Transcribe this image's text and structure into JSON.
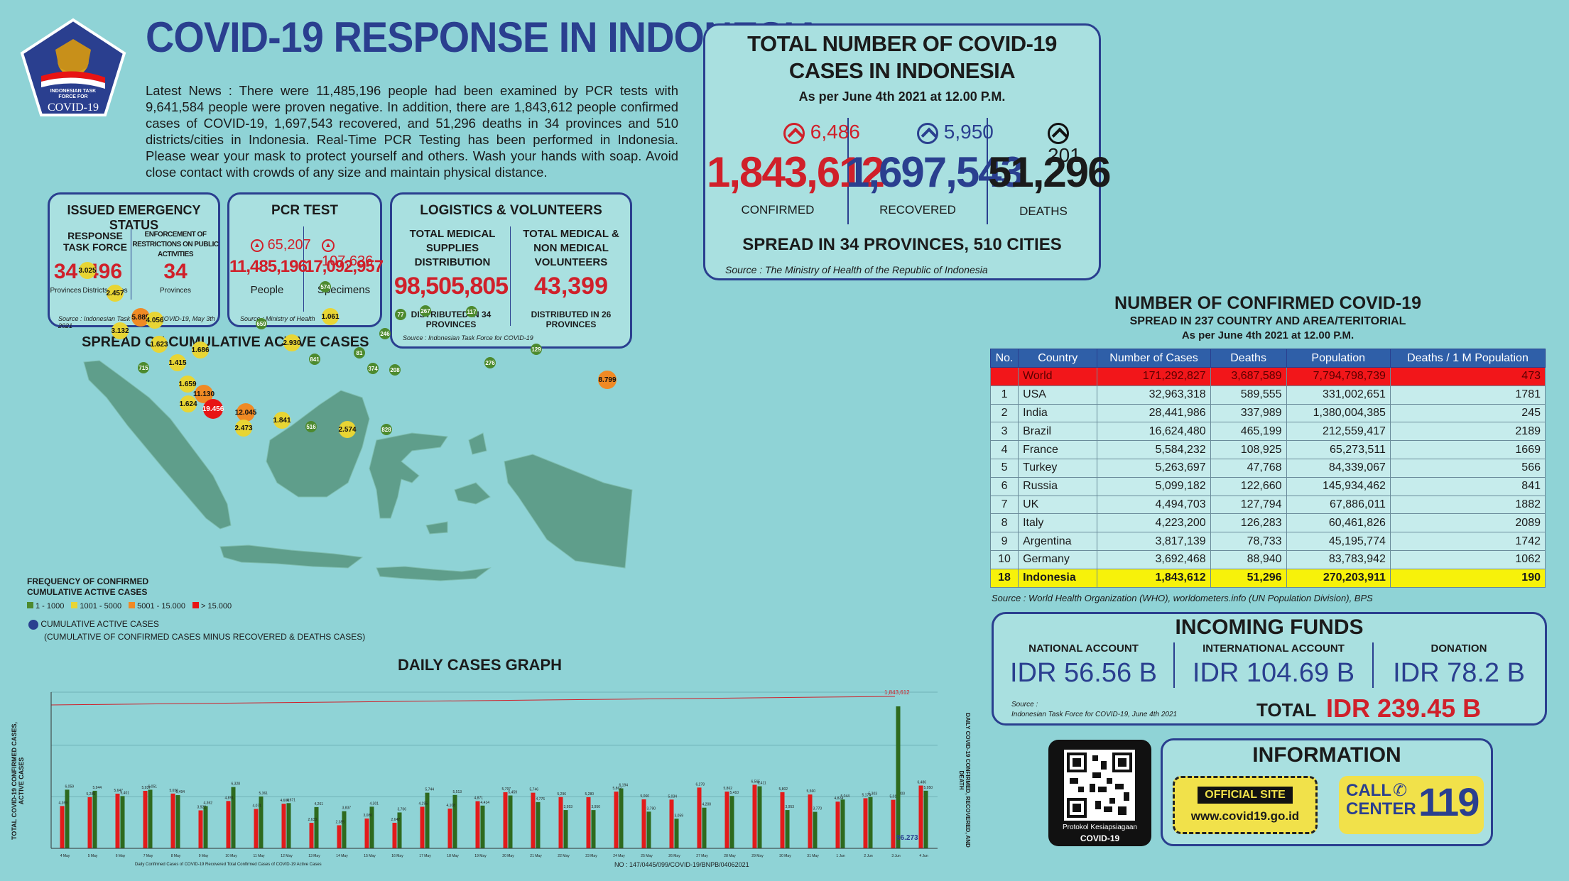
{
  "header": {
    "title": "COVID-19 RESPONSE IN INDONESIA",
    "logo_line1": "INDONESIAN TASK",
    "logo_line2": "FORCE FOR",
    "logo_line3": "COVID-19"
  },
  "news": {
    "text": "Latest News : There were 11,485,196 people had been examined by PCR tests with 9,641,584 people were proven negative. In addition, there are 1,843,612 people confirmed cases of COVID-19, 1,697,543 recovered, and 51,296 deaths in 34 provinces and 510 districts/cities in Indonesia. Real-Time PCR Testing has been performed in Indonesia. Please wear your mask to protect yourself and others. Wash your hands with soap. Avoid close contact with crowds of any size and maintain physical distance."
  },
  "emergency": {
    "title": "ISSUED EMERGENCY STATUS",
    "col1_title": "RESPONSE TASK FORCE",
    "col2_title": "ENFORCEMENT OF RESTRICTIONS ON PUBLIC ACTIVITIES",
    "provinces": "34",
    "provinces_label": "Provinces",
    "districts": "496",
    "districts_label": "Districts/Cities",
    "restr": "34",
    "restr_label": "Provinces",
    "source": "Source : Indonesian Task Force for COVID-19, May 3th 2021"
  },
  "pcr": {
    "title": "PCR TEST",
    "people_inc": "65,207",
    "people": "11,485,196",
    "people_label": "People",
    "spec_inc": "107,636",
    "spec": "17,092,957",
    "spec_label": "Specimens",
    "source": "Source : Ministry of Health"
  },
  "logistics": {
    "title": "LOGISTICS & VOLUNTEERS",
    "col1_title": "TOTAL MEDICAL SUPPLIES DISTRIBUTION",
    "col1_value": "98,505,805",
    "col1_note": "DISTRIBUTED IN 34 PROVINCES",
    "col2_title": "TOTAL MEDICAL & NON MEDICAL VOLUNTEERS",
    "col2_value": "43,399",
    "col2_note": "DISTRIBUTED IN 26 PROVINCES",
    "source": "Source : Indonesian Task Force for COVID-19"
  },
  "totals": {
    "title1": "TOTAL NUMBER OF COVID-19",
    "title2": "CASES IN INDONESIA",
    "asof": "As per June 4th 2021 at 12.00 P.M.",
    "confirmed_inc": "6,486",
    "confirmed": "1,843,612",
    "confirmed_label": "CONFIRMED",
    "recovered_inc": "5,950",
    "recovered": "1,697,543",
    "recovered_label": "RECOVERED",
    "deaths_inc": "201",
    "deaths": "51,296",
    "deaths_label": "DEATHS",
    "spread": "SPREAD IN 34 PROVINCES, 510 CITIES",
    "source": "Source : The Ministry of Health of the Republic of Indonesia",
    "colors": {
      "confirmed": "#d0202a",
      "recovered": "#2a3f8f",
      "deaths": "#111111"
    }
  },
  "world": {
    "title": "NUMBER OF CONFIRMED COVID-19",
    "subtitle": "SPREAD IN 237 COUNTRY AND AREA/TERITORIAL",
    "asof": "As per June 4th 2021 at 12.00 P.M.",
    "headers": [
      "No.",
      "Country",
      "Number of Cases",
      "Deaths",
      "Population",
      "Deaths / 1 M Population"
    ],
    "rows": [
      [
        "",
        "World",
        "171,292,827",
        "3,687,589",
        "7,794,798,739",
        "473"
      ],
      [
        "1",
        "USA",
        "32,963,318",
        "589,555",
        "331,002,651",
        "1781"
      ],
      [
        "2",
        "India",
        "28,441,986",
        "337,989",
        "1,380,004,385",
        "245"
      ],
      [
        "3",
        "Brazil",
        "16,624,480",
        "465,199",
        "212,559,417",
        "2189"
      ],
      [
        "4",
        "France",
        "5,584,232",
        "108,925",
        "65,273,511",
        "1669"
      ],
      [
        "5",
        "Turkey",
        "5,263,697",
        "47,768",
        "84,339,067",
        "566"
      ],
      [
        "6",
        "Russia",
        "5,099,182",
        "122,660",
        "145,934,462",
        "841"
      ],
      [
        "7",
        "UK",
        "4,494,703",
        "127,794",
        "67,886,011",
        "1882"
      ],
      [
        "8",
        "Italy",
        "4,223,200",
        "126,283",
        "60,461,826",
        "2089"
      ],
      [
        "9",
        "Argentina",
        "3,817,139",
        "78,733",
        "45,195,774",
        "1742"
      ],
      [
        "10",
        "Germany",
        "3,692,468",
        "88,940",
        "83,783,942",
        "1062"
      ],
      [
        "18",
        "Indonesia",
        "1,843,612",
        "51,296",
        "270,203,911",
        "190"
      ]
    ],
    "source": "Source : World Health Organization (WHO), worldometers.info (UN Population Division), BPS"
  },
  "funds": {
    "title": "INCOMING FUNDS",
    "national_label": "NATIONAL ACCOUNT",
    "national": "IDR 56.56 B",
    "international_label": "INTERNATIONAL ACCOUNT",
    "international": "IDR 104.69 B",
    "donation_label": "DONATION",
    "donation": "IDR 78.2 B",
    "total_label": "TOTAL",
    "total": "IDR 239.45 B",
    "source1": "Source :",
    "source2": "Indonesian Task Force for COVID-19, June 4th 2021"
  },
  "info": {
    "title": "INFORMATION",
    "site_label": "OFFICIAL SITE",
    "site_url": "www.covid19.go.id",
    "call_label1": "CALL",
    "call_label2": "CENTER",
    "call_number": "119",
    "qr_caption1": "Protokol Kesiapsiagaan",
    "qr_caption2": "COVID-19"
  },
  "map": {
    "title": "SPREAD OF CUMULATIVE ACTIVE CASES",
    "legend_title1": "FREQUENCY OF CONFIRMED",
    "legend_title2": "CUMULATIVE ACTIVE CASES",
    "legend": [
      {
        "label": "1 - 1000",
        "color": "#4d8a2e"
      },
      {
        "label": "1001 - 5000",
        "color": "#e8d534"
      },
      {
        "label": "5001 - 15.000",
        "color": "#f08a24"
      },
      {
        "label": "> 15.000",
        "color": "#e81414"
      }
    ],
    "legend_note1": "CUMULATIVE ACTIVE CASES",
    "legend_note2": "(CUMULATIVE OF CONFIRMED CASES MINUS RECOVERED & DEATHS CASES)",
    "bubbles": [
      {
        "v": "3.025",
        "c": "y"
      },
      {
        "v": "2.457",
        "c": "y"
      },
      {
        "v": "5.885",
        "c": "o"
      },
      {
        "v": "4.056",
        "c": "y"
      },
      {
        "v": "3.132",
        "c": "y"
      },
      {
        "v": "1.623",
        "c": "y"
      },
      {
        "v": "1.686",
        "c": "y"
      },
      {
        "v": "1.415",
        "c": "y"
      },
      {
        "v": "715",
        "c": "g"
      },
      {
        "v": "1.659",
        "c": "y"
      },
      {
        "v": "11.130",
        "c": "o"
      },
      {
        "v": "1.624",
        "c": "y"
      },
      {
        "v": "19.456",
        "c": "r"
      },
      {
        "v": "12.045",
        "c": "o"
      },
      {
        "v": "2.473",
        "c": "y"
      },
      {
        "v": "1.841",
        "c": "y"
      },
      {
        "v": "516",
        "c": "g"
      },
      {
        "v": "2.574",
        "c": "y"
      },
      {
        "v": "828",
        "c": "g"
      },
      {
        "v": "574",
        "c": "g"
      },
      {
        "v": "659",
        "c": "g"
      },
      {
        "v": "1.061",
        "c": "y"
      },
      {
        "v": "2.930",
        "c": "y"
      },
      {
        "v": "841",
        "c": "g"
      },
      {
        "v": "77",
        "c": "g"
      },
      {
        "v": "267",
        "c": "g"
      },
      {
        "v": "117",
        "c": "g"
      },
      {
        "v": "246",
        "c": "g"
      },
      {
        "v": "81",
        "c": "g"
      },
      {
        "v": "374",
        "c": "g"
      },
      {
        "v": "208",
        "c": "g"
      },
      {
        "v": "276",
        "c": "g"
      },
      {
        "v": "129",
        "c": "g"
      },
      {
        "v": "8.799",
        "c": "o"
      }
    ]
  },
  "graph": {
    "title": "DAILY CASES GRAPH",
    "ylabel_left": "TOTAL COVID-19 CONFIRMED CASES, ACTIVE CASES",
    "ylabel_right": "DAILY COVID-19 CONFIRMED, RECOVERED, AND DEATH",
    "line_label": "1,843,612",
    "end_label": "96.273",
    "footer": "NO : 147/0445/099/COVID-19/BNPB/04062021",
    "legend_text": "Daily Confirmed Cases of COVID-19  Recovered  Total Confirmed Cases of COVID-19  Active Cases"
  },
  "chart_data": {
    "type": "bar",
    "title": "DAILY CASES GRAPH",
    "categories": [
      "4 May",
      "5 May",
      "6 May",
      "7 May",
      "8 May",
      "9 May",
      "10 May",
      "11 May",
      "12 May",
      "13 May",
      "14 May",
      "15 May",
      "16 May",
      "17 May",
      "18 May",
      "19 May",
      "20 May",
      "21 May",
      "22 May",
      "23 May",
      "24 May",
      "25 May",
      "26 May",
      "27 May",
      "28 May",
      "29 May",
      "30 May",
      "31 May",
      "1 Jun",
      "2 Jun",
      "3 Jun",
      "4 Jun"
    ],
    "series": [
      {
        "name": "Daily Confirmed Cases of COVID-19",
        "values": [
          4369,
          5285,
          5647,
          5937,
          5656,
          3922,
          4891,
          4071,
          4608,
          2633,
          2385,
          3080,
          2642,
          4295,
          4108,
          4871,
          5797,
          5746,
          5296,
          5280,
          5862,
          5060,
          5034,
          6278,
          5862,
          6565,
          5802,
          5560,
          4824,
          5174,
          5014,
          6486
        ]
      },
      {
        "name": "Recovered",
        "values": [
          6059,
          5944,
          5401,
          6051,
          5494,
          4362,
          6328,
          5361,
          4671,
          4261,
          3837,
          4301,
          3706,
          5744,
          5513,
          4414,
          5459,
          4776,
          3953,
          3950,
          6194,
          3790,
          3059,
          4200,
          5410,
          6411,
          3953,
          3770,
          5044,
          5303,
          5300,
          5950
        ]
      },
      {
        "name": "Total Confirmed Cases of COVID-19",
        "values": [
          1686373,
          1691658,
          1697305,
          1703632,
          1709762,
          1713684,
          1718575,
          1723596,
          1728204,
          1730847,
          1733232,
          1736670,
          1739750,
          1744045,
          1748230,
          1753101,
          1758898,
          1764644,
          1769940,
          1775220,
          1781127,
          1786187,
          1791221,
          1797499,
          1803361,
          1809926,
          1816041,
          1821703,
          1826527,
          1831773,
          1837126,
          1843612
        ]
      }
    ],
    "ylim": [
      0,
      10000
    ]
  }
}
